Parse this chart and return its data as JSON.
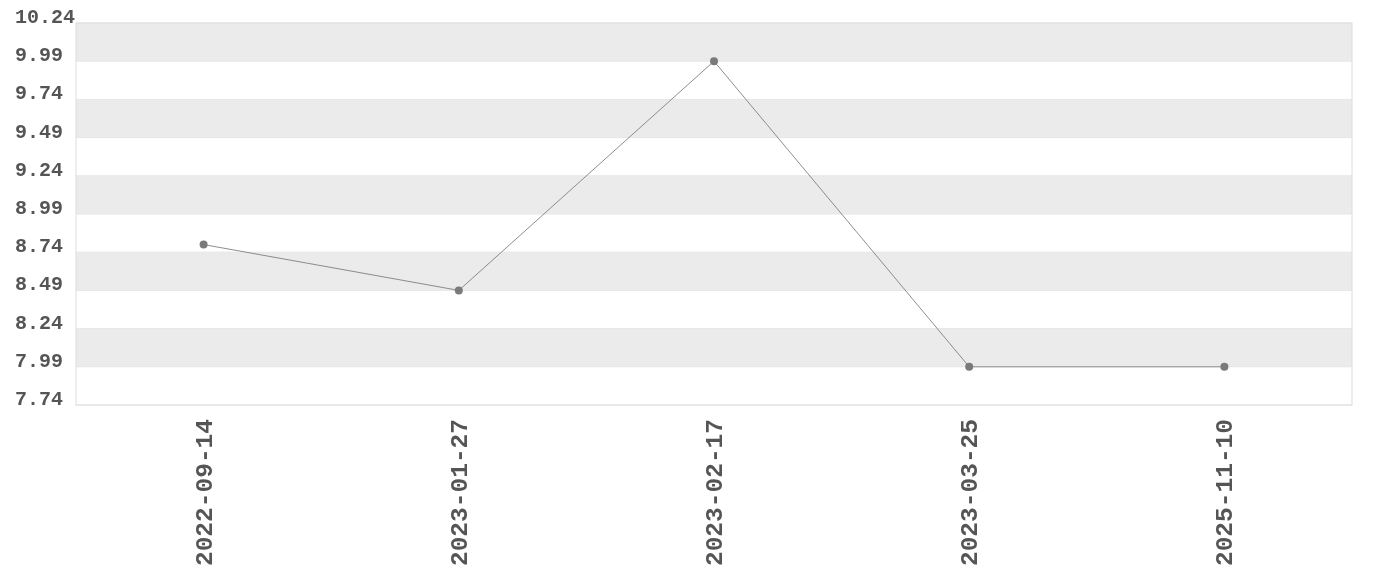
{
  "chart_data": {
    "type": "line",
    "categories": [
      "2022-09-14",
      "2023-01-27",
      "2023-02-17",
      "2023-03-25",
      "2025-11-10"
    ],
    "series": [
      {
        "color": "#7a7a7a",
        "values": [
          8.79,
          8.49,
          9.99,
          7.99,
          7.99
        ]
      }
    ],
    "ylim": [
      7.74,
      10.24
    ],
    "yticks": [
      7.74,
      7.99,
      8.24,
      8.49,
      8.74,
      8.99,
      9.24,
      9.49,
      9.74,
      9.99,
      10.24
    ],
    "grid": "y",
    "marker": "circle",
    "line_style": "solid"
  }
}
